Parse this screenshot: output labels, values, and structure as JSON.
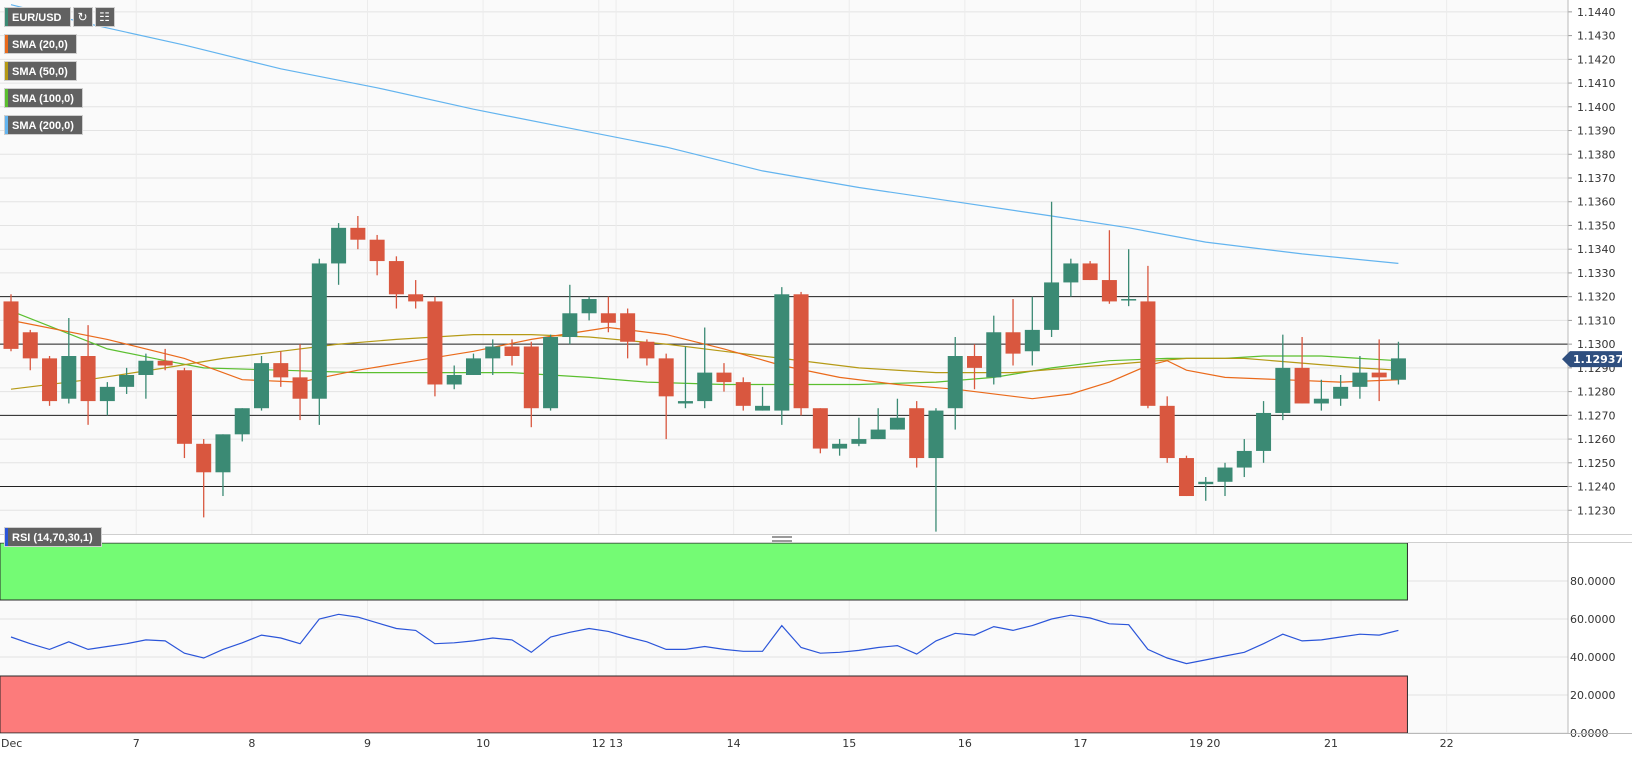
{
  "toolbar": {
    "symbol": "EUR/USD",
    "indicators": [
      {
        "label": "SMA (20,0)",
        "color": "#ea6a1b"
      },
      {
        "label": "SMA (50,0)",
        "color": "#b59a16"
      },
      {
        "label": "SMA (100,0)",
        "color": "#5bbf2f"
      },
      {
        "label": "SMA (200,0)",
        "color": "#63b4ef"
      }
    ],
    "refresh_icon": "refresh-icon",
    "toggle_icon": "indicator-toggle-icon"
  },
  "rsi_label": "RSI (14,70,30,1)",
  "price_badge": "1.12937",
  "colors": {
    "up": "#3b8a74",
    "down": "#d9573f",
    "hline": "#222222",
    "rsi_line": "#2b55d9",
    "overbought_zone": "#74fb74",
    "oversold_zone": "#fc7b7b",
    "badge": "#2f4f7f"
  },
  "chart_data": [
    {
      "type": "candlestick",
      "symbol": "EUR/USD",
      "ylim": [
        1.122,
        1.1445
      ],
      "y_ticks": [
        "1.1230",
        "1.1240",
        "1.1250",
        "1.1260",
        "1.1270",
        "1.1280",
        "1.1290",
        "1.1300",
        "1.1310",
        "1.1320",
        "1.1330",
        "1.1340",
        "1.1350",
        "1.1360",
        "1.1370",
        "1.1380",
        "1.1390",
        "1.1400",
        "1.1410",
        "1.1420",
        "1.1430",
        "1.1440"
      ],
      "x_labels": [
        {
          "label": "Dec",
          "i": 0
        },
        {
          "label": "7",
          "i": 6.5
        },
        {
          "label": "8",
          "i": 12.5
        },
        {
          "label": "9",
          "i": 18.5
        },
        {
          "label": "10",
          "i": 24.5
        },
        {
          "label": "12",
          "i": 30.5
        },
        {
          "label": "13",
          "i": 31.4
        },
        {
          "label": "14",
          "i": 37.5
        },
        {
          "label": "15",
          "i": 43.5
        },
        {
          "label": "16",
          "i": 49.5
        },
        {
          "label": "17",
          "i": 55.5
        },
        {
          "label": "19",
          "i": 61.5
        },
        {
          "label": "20",
          "i": 62.4
        },
        {
          "label": "21",
          "i": 68.5
        },
        {
          "label": "22",
          "i": 74.5
        }
      ],
      "candles": [
        [
          1.1318,
          1.1321,
          1.1297,
          1.1298
        ],
        [
          1.1305,
          1.1306,
          1.1289,
          1.1294
        ],
        [
          1.1294,
          1.1295,
          1.1274,
          1.1276
        ],
        [
          1.1277,
          1.1311,
          1.1275,
          1.1295
        ],
        [
          1.1295,
          1.1308,
          1.1266,
          1.1276
        ],
        [
          1.1276,
          1.1284,
          1.127,
          1.1282
        ],
        [
          1.1282,
          1.129,
          1.1279,
          1.1287
        ],
        [
          1.1287,
          1.1296,
          1.1277,
          1.1293
        ],
        [
          1.1293,
          1.1298,
          1.1289,
          1.1291
        ],
        [
          1.1289,
          1.129,
          1.1252,
          1.1258
        ],
        [
          1.1258,
          1.126,
          1.1227,
          1.1246
        ],
        [
          1.1246,
          1.1262,
          1.1236,
          1.1262
        ],
        [
          1.1262,
          1.1273,
          1.1259,
          1.1273
        ],
        [
          1.1273,
          1.1295,
          1.1272,
          1.1292
        ],
        [
          1.1292,
          1.1297,
          1.1282,
          1.1286
        ],
        [
          1.1286,
          1.13,
          1.1268,
          1.1277
        ],
        [
          1.1277,
          1.1336,
          1.1266,
          1.1334
        ],
        [
          1.1334,
          1.1351,
          1.1325,
          1.1349
        ],
        [
          1.1349,
          1.1354,
          1.134,
          1.1344
        ],
        [
          1.1344,
          1.1346,
          1.1329,
          1.1335
        ],
        [
          1.1335,
          1.1337,
          1.1315,
          1.1321
        ],
        [
          1.1321,
          1.1327,
          1.1315,
          1.1318
        ],
        [
          1.1318,
          1.132,
          1.1278,
          1.1283
        ],
        [
          1.1283,
          1.1291,
          1.1281,
          1.1287
        ],
        [
          1.1287,
          1.1296,
          1.1287,
          1.1294
        ],
        [
          1.1294,
          1.1302,
          1.1287,
          1.1299
        ],
        [
          1.1299,
          1.1302,
          1.1291,
          1.1295
        ],
        [
          1.1299,
          1.1301,
          1.1265,
          1.1273
        ],
        [
          1.1273,
          1.1304,
          1.1272,
          1.1303
        ],
        [
          1.1303,
          1.1325,
          1.13,
          1.1313
        ],
        [
          1.1313,
          1.132,
          1.131,
          1.1319
        ],
        [
          1.1313,
          1.132,
          1.1305,
          1.1309
        ],
        [
          1.1313,
          1.1315,
          1.1294,
          1.1301
        ],
        [
          1.1301,
          1.1302,
          1.1291,
          1.1294
        ],
        [
          1.1294,
          1.1296,
          1.126,
          1.1278
        ],
        [
          1.1275,
          1.1299,
          1.1273,
          1.1276
        ],
        [
          1.1276,
          1.1307,
          1.1273,
          1.1288
        ],
        [
          1.1288,
          1.1292,
          1.128,
          1.1284
        ],
        [
          1.1284,
          1.1286,
          1.1272,
          1.1274
        ],
        [
          1.1272,
          1.1282,
          1.1272,
          1.1274
        ],
        [
          1.1272,
          1.1324,
          1.1266,
          1.1321
        ],
        [
          1.1321,
          1.1322,
          1.127,
          1.1273
        ],
        [
          1.1273,
          1.1273,
          1.1254,
          1.1256
        ],
        [
          1.1256,
          1.126,
          1.1253,
          1.1258
        ],
        [
          1.1258,
          1.1269,
          1.1257,
          1.126
        ],
        [
          1.126,
          1.1273,
          1.126,
          1.1264
        ],
        [
          1.1264,
          1.1277,
          1.1264,
          1.1269
        ],
        [
          1.1273,
          1.1276,
          1.1248,
          1.1252
        ],
        [
          1.1252,
          1.1273,
          1.1221,
          1.1272
        ],
        [
          1.1273,
          1.1303,
          1.1264,
          1.1295
        ],
        [
          1.1295,
          1.13,
          1.1281,
          1.129
        ],
        [
          1.1286,
          1.1312,
          1.1283,
          1.1305
        ],
        [
          1.1305,
          1.1319,
          1.1291,
          1.1296
        ],
        [
          1.1297,
          1.132,
          1.1291,
          1.1306
        ],
        [
          1.1306,
          1.136,
          1.1303,
          1.1326
        ],
        [
          1.1326,
          1.1336,
          1.132,
          1.1334
        ],
        [
          1.1334,
          1.1335,
          1.1327,
          1.1327
        ],
        [
          1.1327,
          1.1348,
          1.1317,
          1.1318
        ],
        [
          1.1319,
          1.134,
          1.1316,
          1.1319
        ],
        [
          1.1318,
          1.1333,
          1.1273,
          1.1274
        ],
        [
          1.1274,
          1.1278,
          1.125,
          1.1252
        ],
        [
          1.1252,
          1.1253,
          1.1236,
          1.1236
        ],
        [
          1.1241,
          1.1244,
          1.1234,
          1.1242
        ],
        [
          1.1242,
          1.125,
          1.1236,
          1.1248
        ],
        [
          1.1248,
          1.126,
          1.1244,
          1.1255
        ],
        [
          1.1255,
          1.1276,
          1.125,
          1.1271
        ],
        [
          1.1271,
          1.1304,
          1.1268,
          1.129
        ],
        [
          1.129,
          1.1303,
          1.1275,
          1.1275
        ],
        [
          1.1275,
          1.1285,
          1.1272,
          1.1277
        ],
        [
          1.1277,
          1.1287,
          1.1274,
          1.1282
        ],
        [
          1.1282,
          1.1295,
          1.1277,
          1.1288
        ],
        [
          1.1288,
          1.1302,
          1.1276,
          1.1286
        ],
        [
          1.1285,
          1.1301,
          1.1283,
          1.1294
        ]
      ],
      "sma_20": [
        [
          0,
          1.131
        ],
        [
          5,
          1.1302
        ],
        [
          9,
          1.1294
        ],
        [
          12,
          1.1285
        ],
        [
          15,
          1.1284
        ],
        [
          18,
          1.1289
        ],
        [
          21,
          1.1293
        ],
        [
          24,
          1.1297
        ],
        [
          27,
          1.1302
        ],
        [
          31,
          1.1307
        ],
        [
          34,
          1.1304
        ],
        [
          37,
          1.1298
        ],
        [
          40,
          1.1291
        ],
        [
          43,
          1.1286
        ],
        [
          46,
          1.1283
        ],
        [
          49,
          1.1281
        ],
        [
          52,
          1.1278
        ],
        [
          53,
          1.1277
        ],
        [
          55,
          1.1279
        ],
        [
          57,
          1.1284
        ],
        [
          59,
          1.1291
        ],
        [
          60,
          1.1293
        ],
        [
          61,
          1.1289
        ],
        [
          63,
          1.1286
        ],
        [
          66,
          1.1285
        ],
        [
          69,
          1.1284
        ],
        [
          72,
          1.1285
        ]
      ],
      "sma_50": [
        [
          0,
          1.1281
        ],
        [
          4,
          1.1285
        ],
        [
          8,
          1.129
        ],
        [
          11,
          1.1294
        ],
        [
          14,
          1.1297
        ],
        [
          17,
          1.13
        ],
        [
          20,
          1.1302
        ],
        [
          24,
          1.1304
        ],
        [
          27,
          1.1304
        ],
        [
          30,
          1.1303
        ],
        [
          34,
          1.13
        ],
        [
          37,
          1.1297
        ],
        [
          40,
          1.1294
        ],
        [
          44,
          1.129
        ],
        [
          48,
          1.1288
        ],
        [
          52,
          1.1288
        ],
        [
          55,
          1.129
        ],
        [
          58,
          1.1292
        ],
        [
          61,
          1.1294
        ],
        [
          64,
          1.1294
        ],
        [
          67,
          1.1292
        ],
        [
          70,
          1.129
        ],
        [
          72,
          1.1289
        ]
      ],
      "sma_100": [
        [
          0,
          1.1314
        ],
        [
          5,
          1.1298
        ],
        [
          8,
          1.1293
        ],
        [
          10,
          1.129
        ],
        [
          14,
          1.1289
        ],
        [
          18,
          1.1288
        ],
        [
          22,
          1.1288
        ],
        [
          26,
          1.1288
        ],
        [
          30,
          1.1286
        ],
        [
          33,
          1.1284
        ],
        [
          37,
          1.1283
        ],
        [
          40,
          1.1283
        ],
        [
          44,
          1.1283
        ],
        [
          48,
          1.1284
        ],
        [
          51,
          1.1286
        ],
        [
          54,
          1.129
        ],
        [
          57,
          1.1293
        ],
        [
          60,
          1.1294
        ],
        [
          63,
          1.1294
        ],
        [
          65,
          1.1295
        ],
        [
          68,
          1.1295
        ],
        [
          70,
          1.1294
        ],
        [
          72,
          1.1293
        ]
      ],
      "sma_200": [
        [
          0,
          1.1443
        ],
        [
          4,
          1.1435
        ],
        [
          9,
          1.1426
        ],
        [
          14,
          1.1416
        ],
        [
          19,
          1.1408
        ],
        [
          24,
          1.1399
        ],
        [
          29,
          1.1391
        ],
        [
          34,
          1.1383
        ],
        [
          39,
          1.1373
        ],
        [
          44,
          1.1366
        ],
        [
          49,
          1.136
        ],
        [
          54,
          1.1354
        ],
        [
          58,
          1.1349
        ],
        [
          62,
          1.1343
        ],
        [
          67,
          1.1338
        ],
        [
          72,
          1.1334
        ]
      ],
      "horizontal_levels": [
        1.132,
        1.13,
        1.127,
        1.124
      ],
      "last_price": 1.12937
    },
    {
      "type": "line",
      "name": "RSI (14,70,30,1)",
      "ylim": [
        0,
        100
      ],
      "y_ticks": [
        "0.0000",
        "20.0000",
        "40.0000",
        "60.0000",
        "80.0000"
      ],
      "overbought": 70,
      "oversold": 30,
      "values": [
        50.5,
        47,
        44,
        48,
        44,
        45.5,
        47,
        49,
        48.5,
        42,
        39.5,
        44,
        47.5,
        51.5,
        50,
        47,
        60,
        62.5,
        61,
        58,
        55,
        54,
        47,
        47.5,
        48.5,
        50,
        49,
        42.5,
        50.5,
        53,
        55,
        53.5,
        50.5,
        48,
        44,
        44,
        45.5,
        44,
        43,
        43,
        56.5,
        45,
        42,
        42.5,
        43.5,
        45,
        46,
        41.5,
        48.5,
        52.5,
        51.5,
        56,
        54,
        56.5,
        60,
        62,
        60.5,
        57.5,
        57,
        44,
        39.5,
        36.5,
        38.5,
        40.5,
        42.5,
        47,
        52,
        48.5,
        49,
        50.5,
        52,
        51.5,
        54
      ]
    }
  ]
}
